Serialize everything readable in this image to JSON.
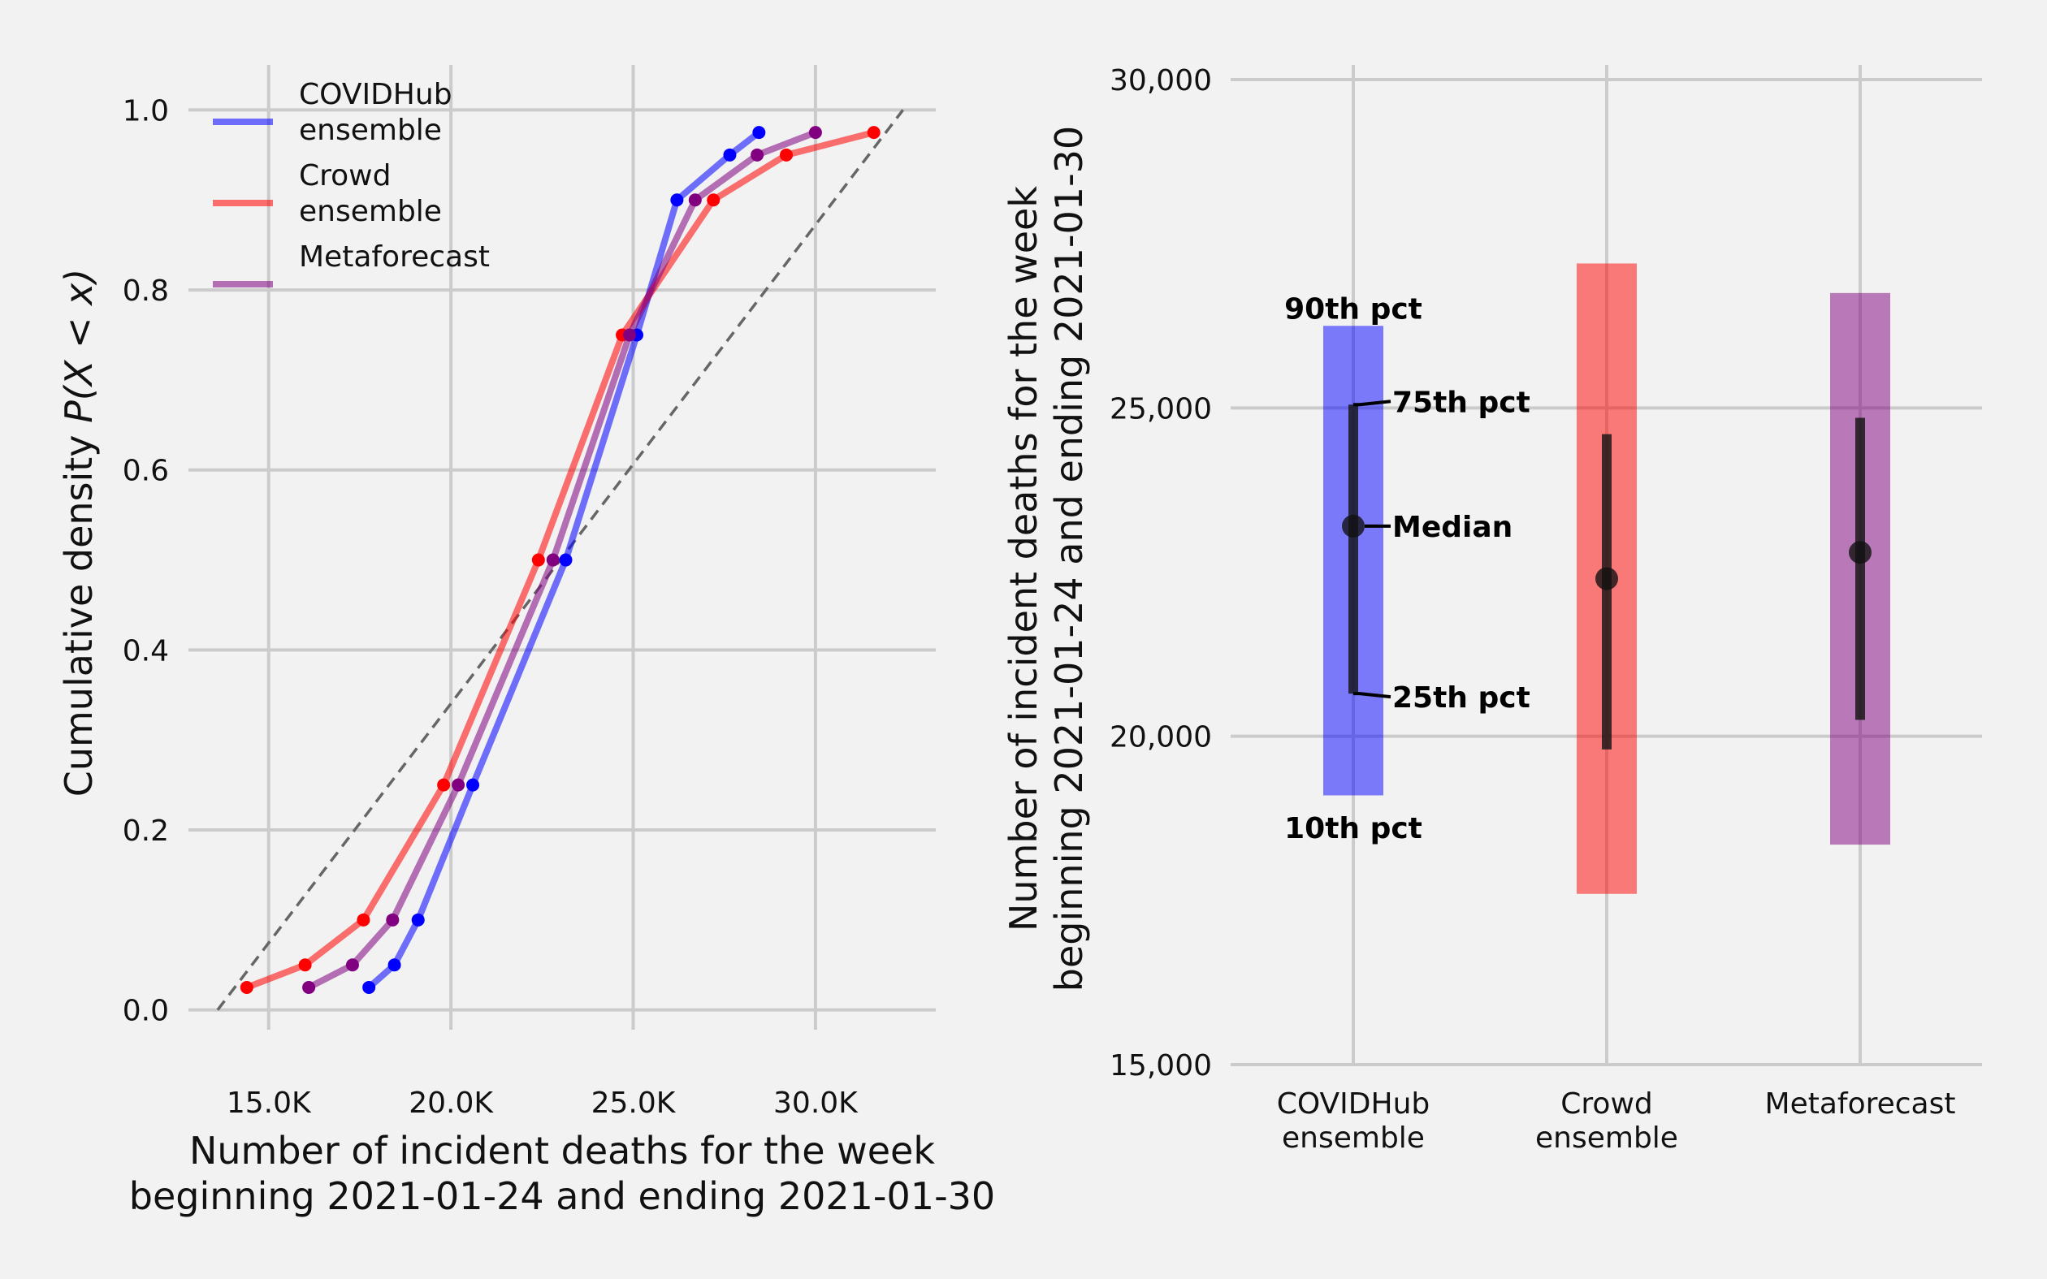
{
  "chart_data": [
    {
      "type": "line",
      "xlabel": [
        "Number of incident deaths for the week",
        "beginning 2021-01-24 and ending 2021-01-30"
      ],
      "ylabel": "Cumulative density P(X < x)",
      "xlim": [
        12800,
        33300
      ],
      "ylim": [
        -0.04,
        1.05
      ],
      "x_ticks": [
        15000,
        20000,
        25000,
        30000
      ],
      "x_tick_labels": [
        "15.0K",
        "20.0K",
        "25.0K",
        "30.0K"
      ],
      "y_ticks": [
        0.0,
        0.2,
        0.4,
        0.6,
        0.8,
        1.0
      ],
      "y_tick_labels": [
        "0.0",
        "0.2",
        "0.4",
        "0.6",
        "0.8",
        "1.0"
      ],
      "grid": true,
      "legend_position": "top-left",
      "reference_line": {
        "style": "dashed",
        "color": "#666666",
        "x": [
          13600,
          32400
        ],
        "y": [
          0.0,
          1.0
        ]
      },
      "series": [
        {
          "name": [
            "COVIDHub",
            "ensemble"
          ],
          "color": "#0000ff",
          "x": [
            17750,
            18450,
            19100,
            20600,
            23150,
            25100,
            26200,
            27650,
            28450
          ],
          "y": [
            0.025,
            0.05,
            0.1,
            0.25,
            0.5,
            0.75,
            0.9,
            0.95,
            0.975
          ]
        },
        {
          "name": [
            "Crowd",
            "ensemble"
          ],
          "color": "#ff0000",
          "x": [
            14400,
            16000,
            17600,
            19800,
            22400,
            24700,
            27200,
            29200,
            31600
          ],
          "y": [
            0.025,
            0.05,
            0.1,
            0.25,
            0.5,
            0.75,
            0.9,
            0.95,
            0.975
          ]
        },
        {
          "name": [
            "Metaforecast"
          ],
          "color": "#800080",
          "x": [
            16100,
            17300,
            18400,
            20200,
            22800,
            24900,
            26700,
            28400,
            30000
          ],
          "y": [
            0.025,
            0.05,
            0.1,
            0.25,
            0.5,
            0.75,
            0.9,
            0.95,
            0.975
          ]
        }
      ]
    },
    {
      "type": "bar",
      "ylabel": [
        "Number of incident deaths for the week",
        "beginning 2021-01-24 and ending 2021-01-30"
      ],
      "ylim": [
        15000,
        30000
      ],
      "y_ticks": [
        15000,
        20000,
        25000,
        30000
      ],
      "y_tick_labels": [
        "15,000",
        "20,000",
        "25,000",
        "30,000"
      ],
      "grid": true,
      "categories": [
        [
          "COVIDHub",
          "ensemble"
        ],
        [
          "Crowd",
          "ensemble"
        ],
        [
          "Metaforecast"
        ]
      ],
      "series": [
        {
          "color": "#0000ff",
          "p10": 19100,
          "p25": 20650,
          "median": 23200,
          "p75": 25050,
          "p90": 26250
        },
        {
          "color": "#ff0000",
          "p10": 17600,
          "p25": 19800,
          "median": 22400,
          "p75": 24600,
          "p90": 27200
        },
        {
          "color": "#800080",
          "p10": 18350,
          "p25": 20250,
          "median": 22800,
          "p75": 24850,
          "p90": 26750
        }
      ],
      "annotations": {
        "p90": "90th pct",
        "p75": "75th pct",
        "median": "Median",
        "p25": "25th pct",
        "p10": "10th pct"
      }
    }
  ]
}
